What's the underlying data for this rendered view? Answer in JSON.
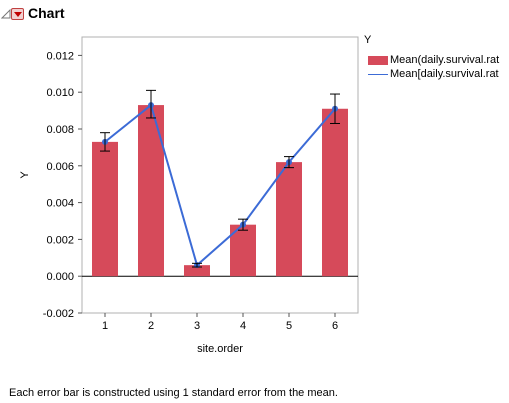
{
  "header": {
    "title": "Chart"
  },
  "legend": {
    "title": "Y",
    "items": [
      "Mean(daily.survival.rat",
      "Mean[daily.survival.rat"
    ]
  },
  "footnote": "Each error bar is constructed using 1 standard error from the mean.",
  "colors": {
    "bar": "#d64a5a",
    "line": "#3c6bd6",
    "errorbar": "#000000"
  },
  "chart_data": {
    "type": "bar",
    "xlabel": "site.order",
    "ylabel": "Y",
    "categories": [
      "1",
      "2",
      "3",
      "4",
      "5",
      "6"
    ],
    "ylim": [
      -0.002,
      0.013
    ],
    "yticks": [
      "-0.002",
      "0.000",
      "0.002",
      "0.004",
      "0.006",
      "0.008",
      "0.010",
      "0.012"
    ],
    "grid": false,
    "series": [
      {
        "name": "Mean(daily.survival.rat",
        "type": "bar",
        "values": [
          0.0073,
          0.0093,
          0.0006,
          0.0028,
          0.0062,
          0.0091
        ]
      },
      {
        "name": "Mean[daily.survival.rat",
        "type": "line",
        "values": [
          0.0073,
          0.0093,
          0.0006,
          0.0028,
          0.0062,
          0.0091
        ]
      }
    ],
    "error_bars": {
      "lower": [
        0.0068,
        0.0086,
        0.0005,
        0.0025,
        0.0059,
        0.0083
      ],
      "upper": [
        0.0078,
        0.0101,
        0.0007,
        0.0031,
        0.0065,
        0.0099
      ]
    }
  }
}
